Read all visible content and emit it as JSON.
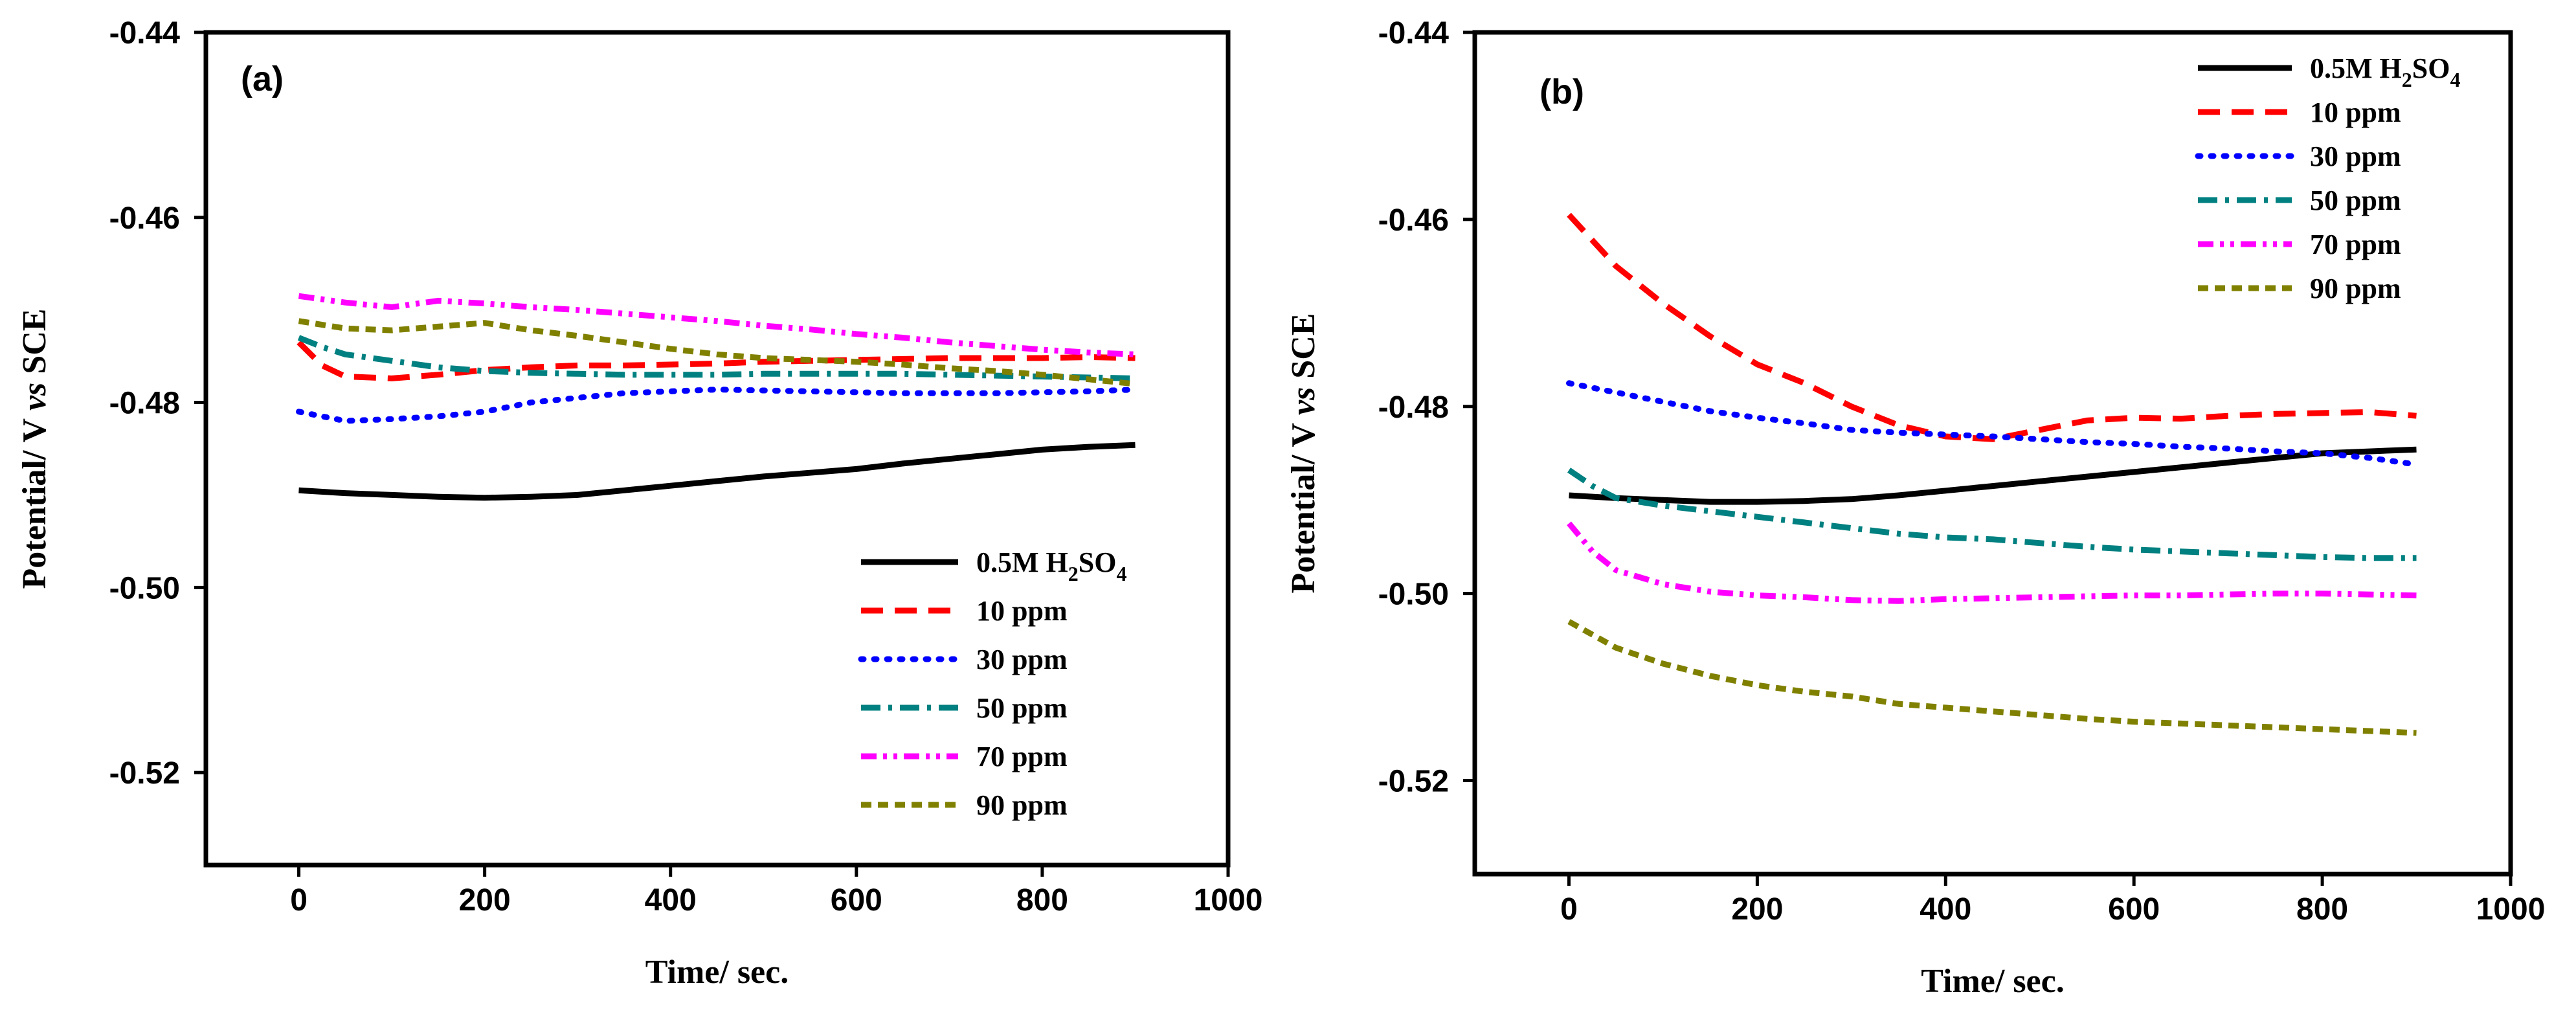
{
  "chart_data": [
    {
      "type": "line",
      "panel_label": "(a)",
      "xlabel": "Time/ sec.",
      "ylabel_parts": [
        "Potential/ V ",
        "vs",
        " SCE"
      ],
      "xlim": [
        -100,
        1000
      ],
      "ylim": [
        -0.53,
        -0.44
      ],
      "xticks": [
        0,
        200,
        400,
        600,
        800,
        1000
      ],
      "xtick_labels": [
        "0",
        "200",
        "400",
        "600",
        "800",
        "1000"
      ],
      "yticks": [
        -0.44,
        -0.46,
        -0.48,
        -0.5,
        -0.52
      ],
      "ytick_labels": [
        "-0.44",
        "-0.46",
        "-0.48",
        "-0.50",
        "-0.52"
      ],
      "legend_position": "bottom-right",
      "series": [
        {
          "name": "0.5M H2SO4",
          "label_main": "0.5M H",
          "sub1": "2",
          "label_mid": "SO",
          "sub2": "4",
          "color": "#000000",
          "dash": "solid",
          "x": [
            0,
            50,
            100,
            150,
            200,
            250,
            300,
            350,
            400,
            450,
            500,
            550,
            600,
            650,
            700,
            750,
            800,
            850,
            900
          ],
          "y": [
            -0.4895,
            -0.4898,
            -0.49,
            -0.4902,
            -0.4903,
            -0.4902,
            -0.49,
            -0.4895,
            -0.489,
            -0.4885,
            -0.488,
            -0.4876,
            -0.4872,
            -0.4866,
            -0.4861,
            -0.4856,
            -0.4851,
            -0.4848,
            -0.4846
          ]
        },
        {
          "name": "10 ppm",
          "color": "#ff0000",
          "dash": "dash",
          "x": [
            0,
            25,
            50,
            100,
            150,
            200,
            250,
            300,
            350,
            400,
            450,
            500,
            550,
            600,
            650,
            700,
            750,
            800,
            850,
            900
          ],
          "y": [
            -0.4735,
            -0.476,
            -0.4772,
            -0.4774,
            -0.477,
            -0.4765,
            -0.4762,
            -0.476,
            -0.476,
            -0.4759,
            -0.4758,
            -0.4756,
            -0.4755,
            -0.4754,
            -0.4753,
            -0.4752,
            -0.4752,
            -0.4752,
            -0.4751,
            -0.4752
          ]
        },
        {
          "name": "30 ppm",
          "color": "#0000ff",
          "dash": "dot",
          "x": [
            0,
            50,
            100,
            150,
            200,
            250,
            300,
            350,
            400,
            450,
            500,
            550,
            600,
            650,
            700,
            750,
            800,
            850,
            900
          ],
          "y": [
            -0.481,
            -0.482,
            -0.4818,
            -0.4815,
            -0.481,
            -0.48,
            -0.4795,
            -0.479,
            -0.4788,
            -0.4786,
            -0.4787,
            -0.4788,
            -0.4789,
            -0.479,
            -0.479,
            -0.479,
            -0.4789,
            -0.4788,
            -0.4786
          ]
        },
        {
          "name": "50 ppm",
          "color": "#008080",
          "dash": "dashdot",
          "x": [
            0,
            25,
            50,
            100,
            150,
            200,
            250,
            300,
            350,
            400,
            450,
            500,
            550,
            600,
            650,
            700,
            750,
            800,
            850,
            900
          ],
          "y": [
            -0.473,
            -0.474,
            -0.4748,
            -0.4755,
            -0.4762,
            -0.4766,
            -0.4768,
            -0.4769,
            -0.477,
            -0.477,
            -0.477,
            -0.4769,
            -0.4769,
            -0.4769,
            -0.4769,
            -0.477,
            -0.4771,
            -0.4772,
            -0.4773,
            -0.4774
          ]
        },
        {
          "name": "70 ppm",
          "color": "#ff00ff",
          "dash": "dashdotdot",
          "x": [
            0,
            50,
            100,
            150,
            200,
            250,
            300,
            350,
            400,
            450,
            500,
            550,
            600,
            650,
            700,
            750,
            800,
            850,
            900
          ],
          "y": [
            -0.4685,
            -0.4692,
            -0.4697,
            -0.469,
            -0.4693,
            -0.4697,
            -0.47,
            -0.4704,
            -0.4708,
            -0.4712,
            -0.4717,
            -0.4721,
            -0.4726,
            -0.473,
            -0.4735,
            -0.4739,
            -0.4743,
            -0.4746,
            -0.4748
          ]
        },
        {
          "name": "90 ppm",
          "color": "#808000",
          "dash": "shortdash",
          "x": [
            0,
            50,
            100,
            150,
            200,
            250,
            300,
            350,
            400,
            450,
            500,
            550,
            600,
            650,
            700,
            750,
            800,
            850,
            900
          ],
          "y": [
            -0.4712,
            -0.472,
            -0.4722,
            -0.4718,
            -0.4714,
            -0.4722,
            -0.4728,
            -0.4735,
            -0.4742,
            -0.4748,
            -0.4752,
            -0.4754,
            -0.4756,
            -0.4759,
            -0.4763,
            -0.4766,
            -0.477,
            -0.4775,
            -0.478
          ]
        }
      ]
    },
    {
      "type": "line",
      "panel_label": "(b)",
      "xlabel": "Time/ sec.",
      "ylabel_parts": [
        "Potential/ V ",
        "vs",
        " SCE"
      ],
      "xlim": [
        -100,
        1000
      ],
      "ylim": [
        -0.53,
        -0.44
      ],
      "xticks": [
        0,
        200,
        400,
        600,
        800,
        1000
      ],
      "xtick_labels": [
        "0",
        "200",
        "400",
        "600",
        "800",
        "1000"
      ],
      "yticks": [
        -0.44,
        -0.46,
        -0.48,
        -0.5,
        -0.52
      ],
      "ytick_labels": [
        "-0.44",
        "-0.46",
        "-0.48",
        "-0.50",
        "-0.52"
      ],
      "legend_position": "top-right",
      "series": [
        {
          "name": "0.5M H2SO4",
          "label_main": "0.5M H",
          "sub1": "2",
          "label_mid": "SO",
          "sub2": "4",
          "color": "#000000",
          "dash": "solid",
          "x": [
            0,
            50,
            100,
            150,
            200,
            250,
            300,
            350,
            400,
            450,
            500,
            550,
            600,
            650,
            700,
            750,
            800,
            850,
            900
          ],
          "y": [
            -0.4895,
            -0.4898,
            -0.49,
            -0.4902,
            -0.4902,
            -0.4901,
            -0.4899,
            -0.4895,
            -0.489,
            -0.4885,
            -0.488,
            -0.4875,
            -0.487,
            -0.4865,
            -0.486,
            -0.4855,
            -0.485,
            -0.4848,
            -0.4846
          ]
        },
        {
          "name": "10 ppm",
          "color": "#ff0000",
          "dash": "dash",
          "x": [
            0,
            50,
            100,
            150,
            200,
            250,
            300,
            350,
            400,
            450,
            500,
            550,
            600,
            650,
            700,
            750,
            800,
            850,
            900
          ],
          "y": [
            -0.4595,
            -0.465,
            -0.469,
            -0.4725,
            -0.4755,
            -0.4775,
            -0.48,
            -0.482,
            -0.4832,
            -0.4835,
            -0.4825,
            -0.4815,
            -0.4812,
            -0.4813,
            -0.481,
            -0.4808,
            -0.4807,
            -0.4806,
            -0.481
          ]
        },
        {
          "name": "30 ppm",
          "color": "#0000ff",
          "dash": "dot",
          "x": [
            0,
            50,
            100,
            150,
            200,
            250,
            300,
            350,
            400,
            450,
            500,
            550,
            600,
            650,
            700,
            750,
            800,
            850,
            900
          ],
          "y": [
            -0.4775,
            -0.4785,
            -0.4795,
            -0.4805,
            -0.4812,
            -0.4818,
            -0.4825,
            -0.4828,
            -0.483,
            -0.4832,
            -0.4835,
            -0.4838,
            -0.484,
            -0.4843,
            -0.4845,
            -0.4848,
            -0.485,
            -0.4855,
            -0.4862
          ]
        },
        {
          "name": "50 ppm",
          "color": "#008080",
          "dash": "dashdot",
          "x": [
            0,
            25,
            50,
            100,
            150,
            200,
            250,
            300,
            350,
            400,
            450,
            500,
            550,
            600,
            650,
            700,
            750,
            800,
            850,
            900
          ],
          "y": [
            -0.4868,
            -0.4885,
            -0.4898,
            -0.4906,
            -0.4912,
            -0.4918,
            -0.4924,
            -0.493,
            -0.4936,
            -0.494,
            -0.4942,
            -0.4946,
            -0.495,
            -0.4953,
            -0.4955,
            -0.4957,
            -0.4959,
            -0.4961,
            -0.4962,
            -0.4962
          ]
        },
        {
          "name": "70 ppm",
          "color": "#ff00ff",
          "dash": "dashdotdot",
          "x": [
            0,
            25,
            50,
            100,
            150,
            200,
            250,
            300,
            350,
            400,
            450,
            500,
            550,
            600,
            650,
            700,
            750,
            800,
            850,
            900
          ],
          "y": [
            -0.4925,
            -0.4955,
            -0.4975,
            -0.499,
            -0.4998,
            -0.5002,
            -0.5004,
            -0.5007,
            -0.5008,
            -0.5006,
            -0.5005,
            -0.5004,
            -0.5003,
            -0.5002,
            -0.5002,
            -0.5001,
            -0.5,
            -0.5,
            -0.5001,
            -0.5002
          ]
        },
        {
          "name": "90 ppm",
          "color": "#808000",
          "dash": "shortdash",
          "x": [
            0,
            50,
            100,
            150,
            200,
            250,
            300,
            350,
            400,
            450,
            500,
            550,
            600,
            650,
            700,
            750,
            800,
            850,
            900
          ],
          "y": [
            -0.503,
            -0.5058,
            -0.5075,
            -0.5088,
            -0.5098,
            -0.5105,
            -0.511,
            -0.5118,
            -0.5122,
            -0.5126,
            -0.513,
            -0.5134,
            -0.5137,
            -0.5139,
            -0.5141,
            -0.5143,
            -0.5145,
            -0.5147,
            -0.5149
          ]
        }
      ]
    }
  ]
}
